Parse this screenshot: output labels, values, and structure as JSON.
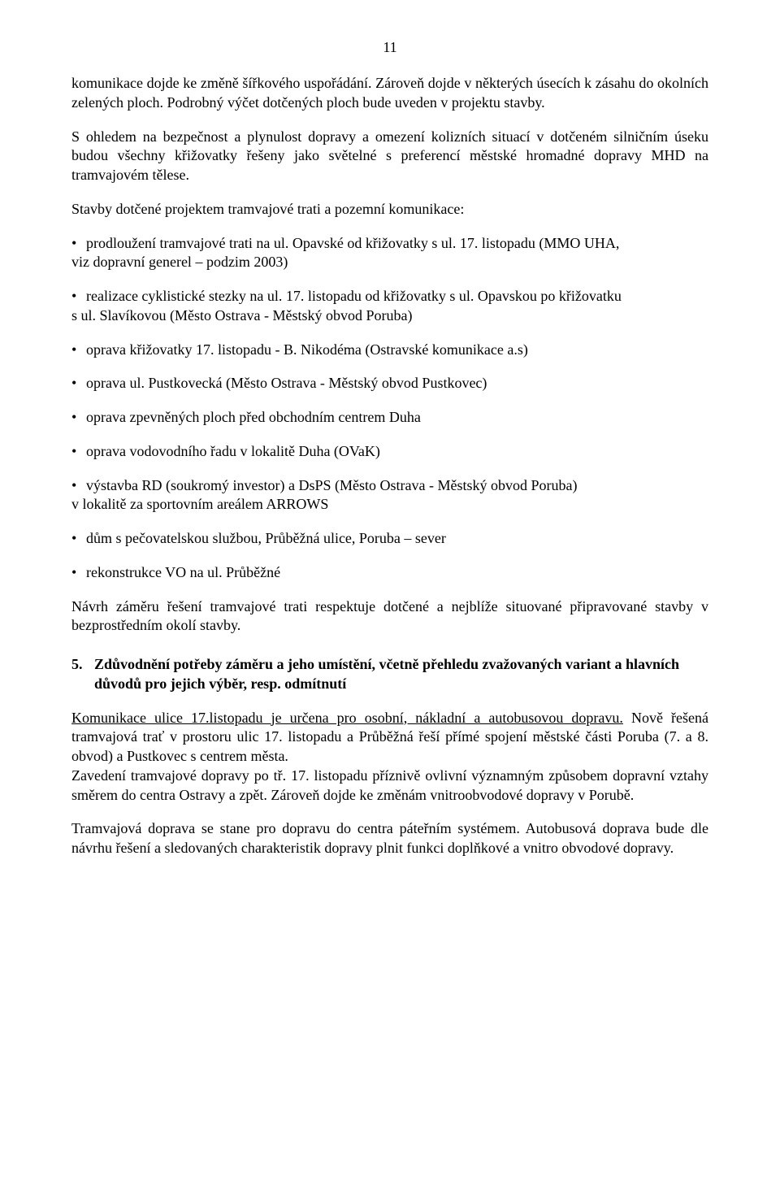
{
  "page_number": "11",
  "p1": "komunikace dojde ke změně šířkového uspořádání. Zároveň dojde v některých úsecích k zásahu do okolních zelených ploch. Podrobný výčet dotčených ploch bude uveden v projektu stavby.",
  "p2": "S ohledem na bezpečnost a plynulost dopravy a omezení kolizních situací v dotčeném silničním úseku budou všechny křižovatky řešeny jako světelné s preferencí městské hromadné dopravy MHD na tramvajovém tělese.",
  "p3": "Stavby dotčené projektem  tramvajové trati a pozemní komunikace:",
  "bullets": {
    "b1a": "prodloužení tramvajové trati na ul. Opavské od křižovatky s ul. 17. listopadu (MMO UHA,",
    "b1b": "viz dopravní generel – podzim 2003)",
    "b2a": "realizace cyklistické stezky na ul. 17. listopadu od křižovatky s ul. Opavskou po křižovatku",
    "b2b": "s ul. Slavíkovou (Město Ostrava - Městský obvod Poruba)",
    "b3": "oprava křižovatky 17. listopadu - B. Nikodéma (Ostravské komunikace a.s)",
    "b4": "oprava ul. Pustkovecká (Město Ostrava - Městský obvod Pustkovec)",
    "b5": "oprava zpevněných ploch před obchodním centrem Duha",
    "b6": "oprava vodovodního řadu v lokalitě Duha  (OVaK)",
    "b7a": "výstavba RD (soukromý investor) a DsPS (Město Ostrava - Městský obvod Poruba)",
    "b7b": "v lokalitě za sportovním areálem ARROWS",
    "b8": "dům s pečovatelskou službou, Průběžná ulice, Poruba – sever",
    "b9": "rekonstrukce VO na ul. Průběžné"
  },
  "p4": "Návrh záměru řešení tramvajové trati respektuje  dotčené a nejblíže situované připravované stavby v bezprostředním okolí stavby.",
  "section": {
    "num": "5.",
    "title": "Zdůvodnění potřeby záměru a jeho umístění, včetně přehledu zvažovaných variant a hlavních důvodů pro jejich výběr, resp. odmítnutí"
  },
  "p5a": "Komunikace ulice 17.listopadu je určena pro osobní, nákladní a autobusovou dopravu.",
  "p5b": " Nově řešená tramvajová trať v  prostoru  ulic 17. listopadu a Průběžná řeší přímé spojení městské části Poruba (7. a 8. obvod) a Pustkovec s centrem města.",
  "p6": "Zavedení tramvajové dopravy po tř. 17. listopadu příznivě ovlivní významným způsobem dopravní vztahy směrem do centra Ostravy a zpět. Zároveň dojde ke změnám vnitroobvodové dopravy v Porubě.",
  "p7": "Tramvajová doprava se stane pro dopravu do centra páteřním systémem. Autobusová doprava bude dle návrhu řešení a sledovaných charakteristik dopravy plnit funkci doplňkové a vnitro obvodové dopravy."
}
